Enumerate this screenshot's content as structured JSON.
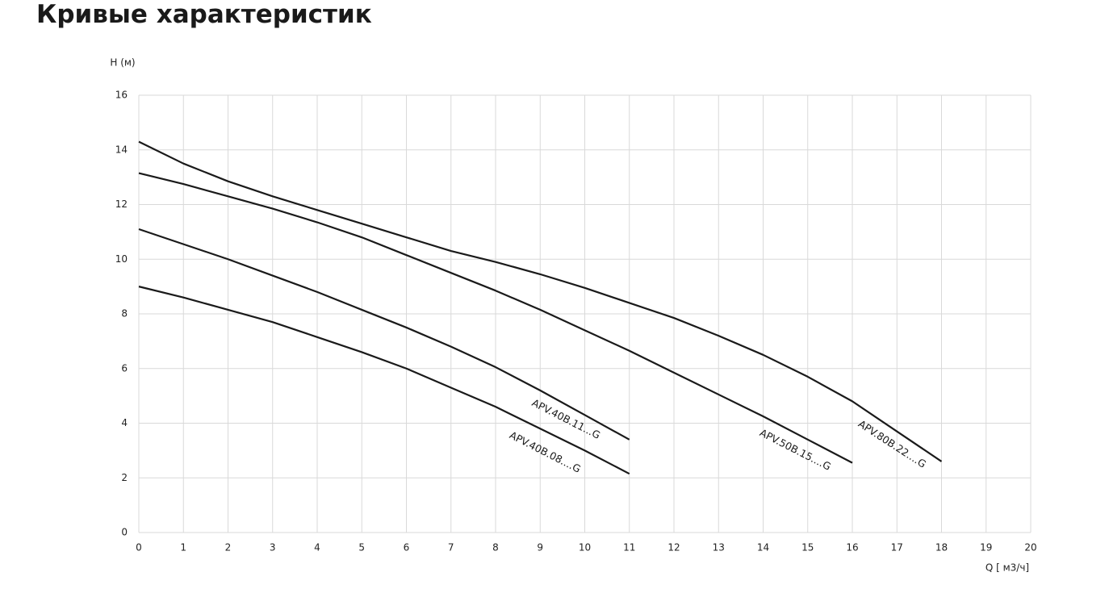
{
  "chart_data": {
    "type": "line",
    "title": "Кривые характеристик",
    "y_label": "H (м)",
    "x_label": "Q [ м3/ч]",
    "xlim": [
      0,
      20
    ],
    "ylim": [
      0,
      16
    ],
    "xticks": [
      0,
      1,
      2,
      3,
      4,
      5,
      6,
      7,
      8,
      9,
      10,
      11,
      12,
      13,
      14,
      15,
      16,
      17,
      18,
      19,
      20
    ],
    "yticks": [
      0,
      2,
      4,
      6,
      8,
      10,
      12,
      14,
      16
    ],
    "grid": true,
    "series": [
      {
        "name": "APV.40B.08....G",
        "color": "#1a1a1a",
        "x": [
          0,
          1,
          2,
          3,
          4,
          5,
          6,
          7,
          8,
          9,
          10,
          11
        ],
        "values": [
          9.0,
          8.6,
          8.15,
          7.7,
          7.15,
          6.6,
          6.0,
          5.3,
          4.6,
          3.8,
          3.0,
          2.15
        ]
      },
      {
        "name": "APV.40B.11...G",
        "color": "#1a1a1a",
        "x": [
          0,
          1,
          2,
          3,
          4,
          5,
          6,
          7,
          8,
          9,
          10,
          11
        ],
        "values": [
          11.1,
          10.55,
          10.0,
          9.4,
          8.8,
          8.15,
          7.5,
          6.8,
          6.05,
          5.2,
          4.3,
          3.4
        ]
      },
      {
        "name": "APV.50B.15....G",
        "color": "#1a1a1a",
        "x": [
          0,
          1,
          2,
          3,
          4,
          5,
          6,
          7,
          8,
          9,
          10,
          11,
          12,
          13,
          14,
          15,
          16
        ],
        "values": [
          13.15,
          12.75,
          12.3,
          11.85,
          11.35,
          10.8,
          10.15,
          9.5,
          8.85,
          8.15,
          7.4,
          6.65,
          5.85,
          5.05,
          4.25,
          3.4,
          2.55
        ]
      },
      {
        "name": "APV.80B.22....G",
        "color": "#1a1a1a",
        "x": [
          0,
          1,
          2,
          3,
          4,
          5,
          6,
          7,
          8,
          9,
          10,
          11,
          12,
          13,
          14,
          15,
          16,
          17,
          18
        ],
        "values": [
          14.3,
          13.5,
          12.85,
          12.3,
          11.8,
          11.3,
          10.8,
          10.3,
          9.9,
          9.45,
          8.95,
          8.4,
          7.85,
          7.2,
          6.5,
          5.7,
          4.8,
          3.7,
          2.6
        ]
      }
    ]
  }
}
